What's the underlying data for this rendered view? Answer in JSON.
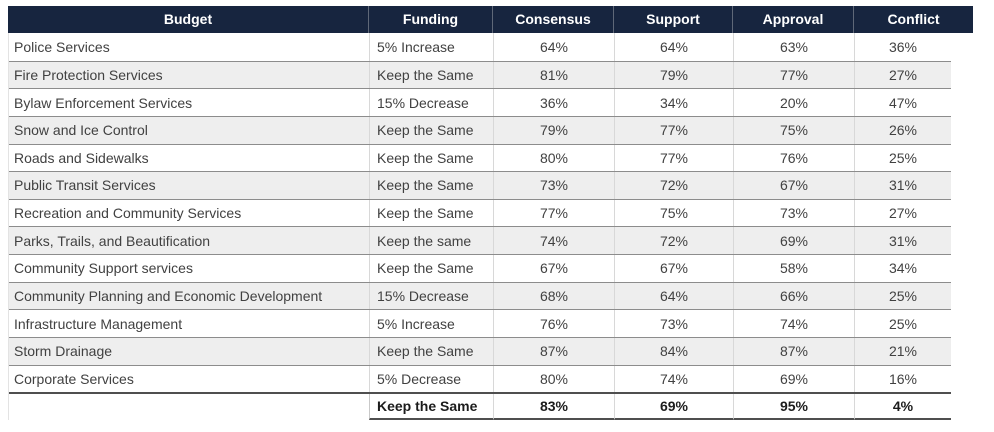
{
  "colors": {
    "header_bg": "#17253f",
    "header_text": "#ffffff",
    "zebra_row_bg": "#eeeeee",
    "row_border": "#8c8c8c",
    "body_text": "#414141"
  },
  "table": {
    "columns": [
      "Budget",
      "Funding",
      "Consensus",
      "Support",
      "Approval",
      "Conflict"
    ],
    "rows": [
      {
        "budget": "Police Services",
        "funding": "5% Increase",
        "consensus": "64%",
        "support": "64%",
        "approval": "63%",
        "conflict": "36%",
        "summary": false
      },
      {
        "budget": "Fire Protection Services",
        "funding": "Keep the Same",
        "consensus": "81%",
        "support": "79%",
        "approval": "77%",
        "conflict": "27%",
        "summary": false
      },
      {
        "budget": "Bylaw Enforcement Services",
        "funding": "15% Decrease",
        "consensus": "36%",
        "support": "34%",
        "approval": "20%",
        "conflict": "47%",
        "summary": false
      },
      {
        "budget": "Snow and Ice Control",
        "funding": "Keep the Same",
        "consensus": "79%",
        "support": "77%",
        "approval": "75%",
        "conflict": "26%",
        "summary": false
      },
      {
        "budget": "Roads and Sidewalks",
        "funding": "Keep the Same",
        "consensus": "80%",
        "support": "77%",
        "approval": "76%",
        "conflict": "25%",
        "summary": false
      },
      {
        "budget": "Public Transit Services",
        "funding": "Keep the Same",
        "consensus": "73%",
        "support": "72%",
        "approval": "67%",
        "conflict": "31%",
        "summary": false
      },
      {
        "budget": "Recreation and Community Services",
        "funding": "Keep the Same",
        "consensus": "77%",
        "support": "75%",
        "approval": "73%",
        "conflict": "27%",
        "summary": false
      },
      {
        "budget": "Parks, Trails, and Beautification",
        "funding": "Keep the same",
        "consensus": "74%",
        "support": "72%",
        "approval": "69%",
        "conflict": "31%",
        "summary": false
      },
      {
        "budget": "Community Support services",
        "funding": "Keep the Same",
        "consensus": "67%",
        "support": "67%",
        "approval": "58%",
        "conflict": "34%",
        "summary": false
      },
      {
        "budget": "Community Planning and Economic Development",
        "funding": "15% Decrease",
        "consensus": "68%",
        "support": "64%",
        "approval": "66%",
        "conflict": "25%",
        "summary": false
      },
      {
        "budget": "Infrastructure Management",
        "funding": "5% Increase",
        "consensus": "76%",
        "support": "73%",
        "approval": "74%",
        "conflict": "25%",
        "summary": false
      },
      {
        "budget": "Storm Drainage",
        "funding": "Keep the Same",
        "consensus": "87%",
        "support": "84%",
        "approval": "87%",
        "conflict": "21%",
        "summary": false
      },
      {
        "budget": "Corporate Services",
        "funding": "5% Decrease",
        "consensus": "80%",
        "support": "74%",
        "approval": "69%",
        "conflict": "16%",
        "summary": false
      },
      {
        "budget": "",
        "funding": "Keep the Same",
        "consensus": "83%",
        "support": "69%",
        "approval": "95%",
        "conflict": "4%",
        "summary": true
      }
    ]
  },
  "chart_data": {
    "type": "table",
    "title": "",
    "columns": [
      "Budget",
      "Funding",
      "Consensus",
      "Support",
      "Approval",
      "Conflict"
    ],
    "rows": [
      [
        "Police Services",
        "5% Increase",
        "64%",
        "64%",
        "63%",
        "36%"
      ],
      [
        "Fire Protection Services",
        "Keep the Same",
        "81%",
        "79%",
        "77%",
        "27%"
      ],
      [
        "Bylaw Enforcement Services",
        "15% Decrease",
        "36%",
        "34%",
        "20%",
        "47%"
      ],
      [
        "Snow and Ice Control",
        "Keep the Same",
        "79%",
        "77%",
        "75%",
        "26%"
      ],
      [
        "Roads and Sidewalks",
        "Keep the Same",
        "80%",
        "77%",
        "76%",
        "25%"
      ],
      [
        "Public Transit Services",
        "Keep the Same",
        "73%",
        "72%",
        "67%",
        "31%"
      ],
      [
        "Recreation and Community Services",
        "Keep the Same",
        "77%",
        "75%",
        "73%",
        "27%"
      ],
      [
        "Parks, Trails, and Beautification",
        "Keep the same",
        "74%",
        "72%",
        "69%",
        "31%"
      ],
      [
        "Community Support services",
        "Keep the Same",
        "67%",
        "67%",
        "58%",
        "34%"
      ],
      [
        "Community Planning and Economic Development",
        "15% Decrease",
        "68%",
        "64%",
        "66%",
        "25%"
      ],
      [
        "Infrastructure Management",
        "5% Increase",
        "76%",
        "73%",
        "74%",
        "25%"
      ],
      [
        "Storm Drainage",
        "Keep the Same",
        "87%",
        "84%",
        "87%",
        "21%"
      ],
      [
        "Corporate Services",
        "5% Decrease",
        "80%",
        "74%",
        "69%",
        "16%"
      ],
      [
        "",
        "Keep the Same",
        "83%",
        "69%",
        "95%",
        "4%"
      ]
    ],
    "layout_hints": {
      "zebra_striping": true,
      "header_style": "dark navy background, white bold text, centered",
      "summary_row": "last row bold with heavy top and bottom rules, empty Budget cell",
      "alignment": {
        "Budget": "left",
        "Funding": "left",
        "percent_columns": "center"
      }
    }
  }
}
